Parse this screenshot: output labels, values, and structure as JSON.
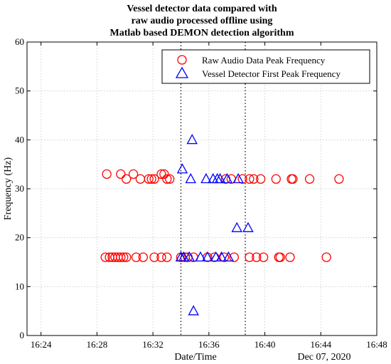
{
  "chart_data": {
    "type": "scatter",
    "title": [
      "Vessel detector data compared with",
      "raw audio processed offline using",
      "Matlab based DEMON detection algorithm"
    ],
    "xlabel": "Date/Time",
    "ylabel": "Frequency (Hz)",
    "date_label": "Dec 07, 2020",
    "xlim": [
      "16:23",
      "16:48"
    ],
    "ylim": [
      0,
      60
    ],
    "x_ticks": [
      "16:24",
      "16:28",
      "16:32",
      "16:36",
      "16:40",
      "16:44",
      "16:48"
    ],
    "y_ticks": [
      0,
      10,
      20,
      30,
      40,
      50,
      60
    ],
    "grid": true,
    "legend_position": "top-right",
    "vlines": [
      "16:34:00",
      "16:38:36"
    ],
    "series": [
      {
        "name": "Raw Audio Data Peak Frequency",
        "marker": "circle",
        "color": "#ff0000",
        "points": [
          [
            "16:28:42",
            33
          ],
          [
            "16:29:42",
            33
          ],
          [
            "16:30:06",
            32
          ],
          [
            "16:30:36",
            33
          ],
          [
            "16:31:06",
            32
          ],
          [
            "16:31:42",
            32
          ],
          [
            "16:31:54",
            32
          ],
          [
            "16:32:06",
            32
          ],
          [
            "16:32:36",
            33
          ],
          [
            "16:32:48",
            33
          ],
          [
            "16:33:00",
            32
          ],
          [
            "16:33:12",
            32
          ],
          [
            "16:37:12",
            32
          ],
          [
            "16:37:36",
            32
          ],
          [
            "16:38:24",
            32
          ],
          [
            "16:38:54",
            32
          ],
          [
            "16:39:12",
            32
          ],
          [
            "16:39:42",
            32
          ],
          [
            "16:40:48",
            32
          ],
          [
            "16:41:54",
            32
          ],
          [
            "16:42:00",
            32
          ],
          [
            "16:43:12",
            32
          ],
          [
            "16:45:18",
            32
          ],
          [
            "16:28:36",
            16
          ],
          [
            "16:28:54",
            16
          ],
          [
            "16:29:06",
            16
          ],
          [
            "16:29:18",
            16
          ],
          [
            "16:29:30",
            16
          ],
          [
            "16:29:42",
            16
          ],
          [
            "16:29:54",
            16
          ],
          [
            "16:30:06",
            16
          ],
          [
            "16:30:48",
            16
          ],
          [
            "16:31:18",
            16
          ],
          [
            "16:32:06",
            16
          ],
          [
            "16:32:36",
            16
          ],
          [
            "16:33:00",
            16
          ],
          [
            "16:34:00",
            16
          ],
          [
            "16:34:18",
            16
          ],
          [
            "16:34:30",
            16
          ],
          [
            "16:34:54",
            16
          ],
          [
            "16:35:54",
            16
          ],
          [
            "16:36:24",
            16
          ],
          [
            "16:37:06",
            16
          ],
          [
            "16:37:48",
            16
          ],
          [
            "16:38:54",
            16
          ],
          [
            "16:39:24",
            16
          ],
          [
            "16:39:54",
            16
          ],
          [
            "16:41:00",
            16
          ],
          [
            "16:41:06",
            16
          ],
          [
            "16:41:48",
            16
          ],
          [
            "16:44:24",
            16
          ]
        ]
      },
      {
        "name": "Vessel Detector First Peak Frequency",
        "marker": "triangle",
        "color": "#0000ff",
        "points": [
          [
            "16:34:48",
            40
          ],
          [
            "16:34:06",
            34
          ],
          [
            "16:34:42",
            32
          ],
          [
            "16:35:48",
            32
          ],
          [
            "16:36:18",
            32
          ],
          [
            "16:36:36",
            32
          ],
          [
            "16:36:48",
            32
          ],
          [
            "16:37:18",
            32
          ],
          [
            "16:38:06",
            32
          ],
          [
            "16:38:00",
            22
          ],
          [
            "16:38:48",
            22
          ],
          [
            "16:34:00",
            16
          ],
          [
            "16:34:12",
            16
          ],
          [
            "16:34:36",
            16
          ],
          [
            "16:35:24",
            16
          ],
          [
            "16:35:54",
            16
          ],
          [
            "16:36:30",
            16
          ],
          [
            "16:36:54",
            16
          ],
          [
            "16:37:24",
            16
          ],
          [
            "16:34:54",
            5
          ]
        ]
      }
    ]
  }
}
